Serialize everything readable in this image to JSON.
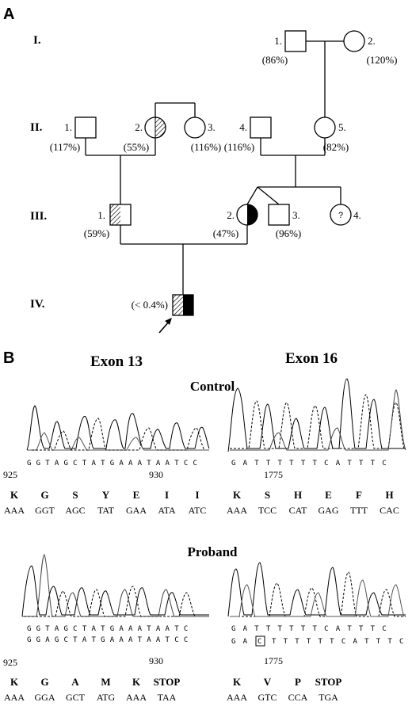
{
  "panel_a": {
    "label": "A",
    "generations": [
      "I.",
      "II.",
      "III.",
      "IV."
    ],
    "individuals": [
      {
        "id": "I-1",
        "num": "1.",
        "pct": "(86%)"
      },
      {
        "id": "I-2",
        "num": "2.",
        "pct": "(120%)"
      },
      {
        "id": "II-1",
        "num": "1.",
        "pct": "(117%)"
      },
      {
        "id": "II-2",
        "num": "2.",
        "pct": "(55%)"
      },
      {
        "id": "II-3",
        "num": "3.",
        "pct": "(116%)"
      },
      {
        "id": "II-4",
        "num": "4.",
        "pct": "(116%)"
      },
      {
        "id": "II-5",
        "num": "5.",
        "pct": "(82%)"
      },
      {
        "id": "III-1",
        "num": "1.",
        "pct": "(59%)"
      },
      {
        "id": "III-2",
        "num": "2.",
        "pct": "(47%)"
      },
      {
        "id": "III-3",
        "num": "3.",
        "pct": "(96%)"
      },
      {
        "id": "III-4",
        "num": "4.",
        "pct": "",
        "symbol_text": "?"
      },
      {
        "id": "IV-1",
        "num": "",
        "pct": "(< 0.4%)"
      }
    ]
  },
  "panel_b": {
    "label": "B",
    "exon13_title": "Exon 13",
    "exon16_title": "Exon 16",
    "control_label": "Control",
    "proband_label": "Proband",
    "control": {
      "exon13": {
        "sequence": "G G T A G C T A T G A A A T A A T C C",
        "pos_left": "925",
        "pos_right": "930",
        "amino_acids": [
          "K",
          "G",
          "S",
          "Y",
          "E",
          "I",
          "I"
        ],
        "codons": [
          "AAA",
          "GGT",
          "AGC",
          "TAT",
          "GAA",
          "ATA",
          "ATC"
        ]
      },
      "exon16": {
        "sequence": "G A T T T T T T C A T T T C",
        "pos": "1775",
        "amino_acids": [
          "K",
          "S",
          "H",
          "E",
          "F",
          "H"
        ],
        "codons": [
          "AAA",
          "TCC",
          "CAT",
          "GAG",
          "TTT",
          "CAC"
        ]
      }
    },
    "proband": {
      "exon13": {
        "sequence_1": "G G T A G C T A T G A A A T A A T C",
        "sequence_2": "G G A G C T A T G A A A T A A T C C",
        "pos_left": "925",
        "pos_right": "930",
        "amino_acids": [
          "K",
          "G",
          "A",
          "M",
          "K",
          "STOP"
        ],
        "codons": [
          "AAA",
          "GGA",
          "GCT",
          "ATG",
          "AAA",
          "TAA"
        ]
      },
      "exon16": {
        "sequence_1": "G A T T T T T T C A T T T C",
        "seq2_prefix": "G A",
        "seq2_boxed": "C",
        "seq2_suffix": "T T T T T T C A T T T C",
        "pos": "1775",
        "amino_acids": [
          "K",
          "V",
          "P",
          "STOP"
        ],
        "codons": [
          "AAA",
          "GTC",
          "CCA",
          "TGA"
        ]
      }
    }
  }
}
